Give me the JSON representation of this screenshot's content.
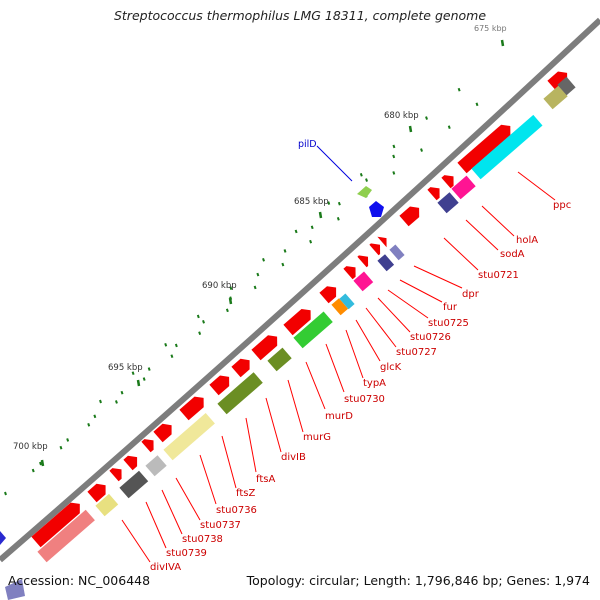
{
  "title": "Streptococcus thermophilus LMG 18311, complete genome",
  "footer": {
    "accession": "Accession: NC_006448",
    "summary": "Topology: circular; Length: 1,796,846 bp; Genes: 1,974"
  },
  "colors": {
    "backbone": "#7a7a7a",
    "gene_forward": "#ff0000",
    "label_line": "#ff0000",
    "pil_label": "#0000cc",
    "tick": "#006400"
  },
  "scale_labels": [
    "675 kbp",
    "680 kbp",
    "685 kbp",
    "690 kbp",
    "695 kbp",
    "700 kbp"
  ],
  "gene_labels": [
    "ppc",
    "holA",
    "sodA",
    "stu0721",
    "dpr",
    "fur",
    "stu0725",
    "stu0726",
    "stu0727",
    "glcK",
    "typA",
    "stu0730",
    "murD",
    "murG",
    "divIB",
    "ftsA",
    "ftsZ",
    "stu0736",
    "stu0737",
    "stu0738",
    "stu0739",
    "divIVA"
  ],
  "pil_label": "pilD"
}
